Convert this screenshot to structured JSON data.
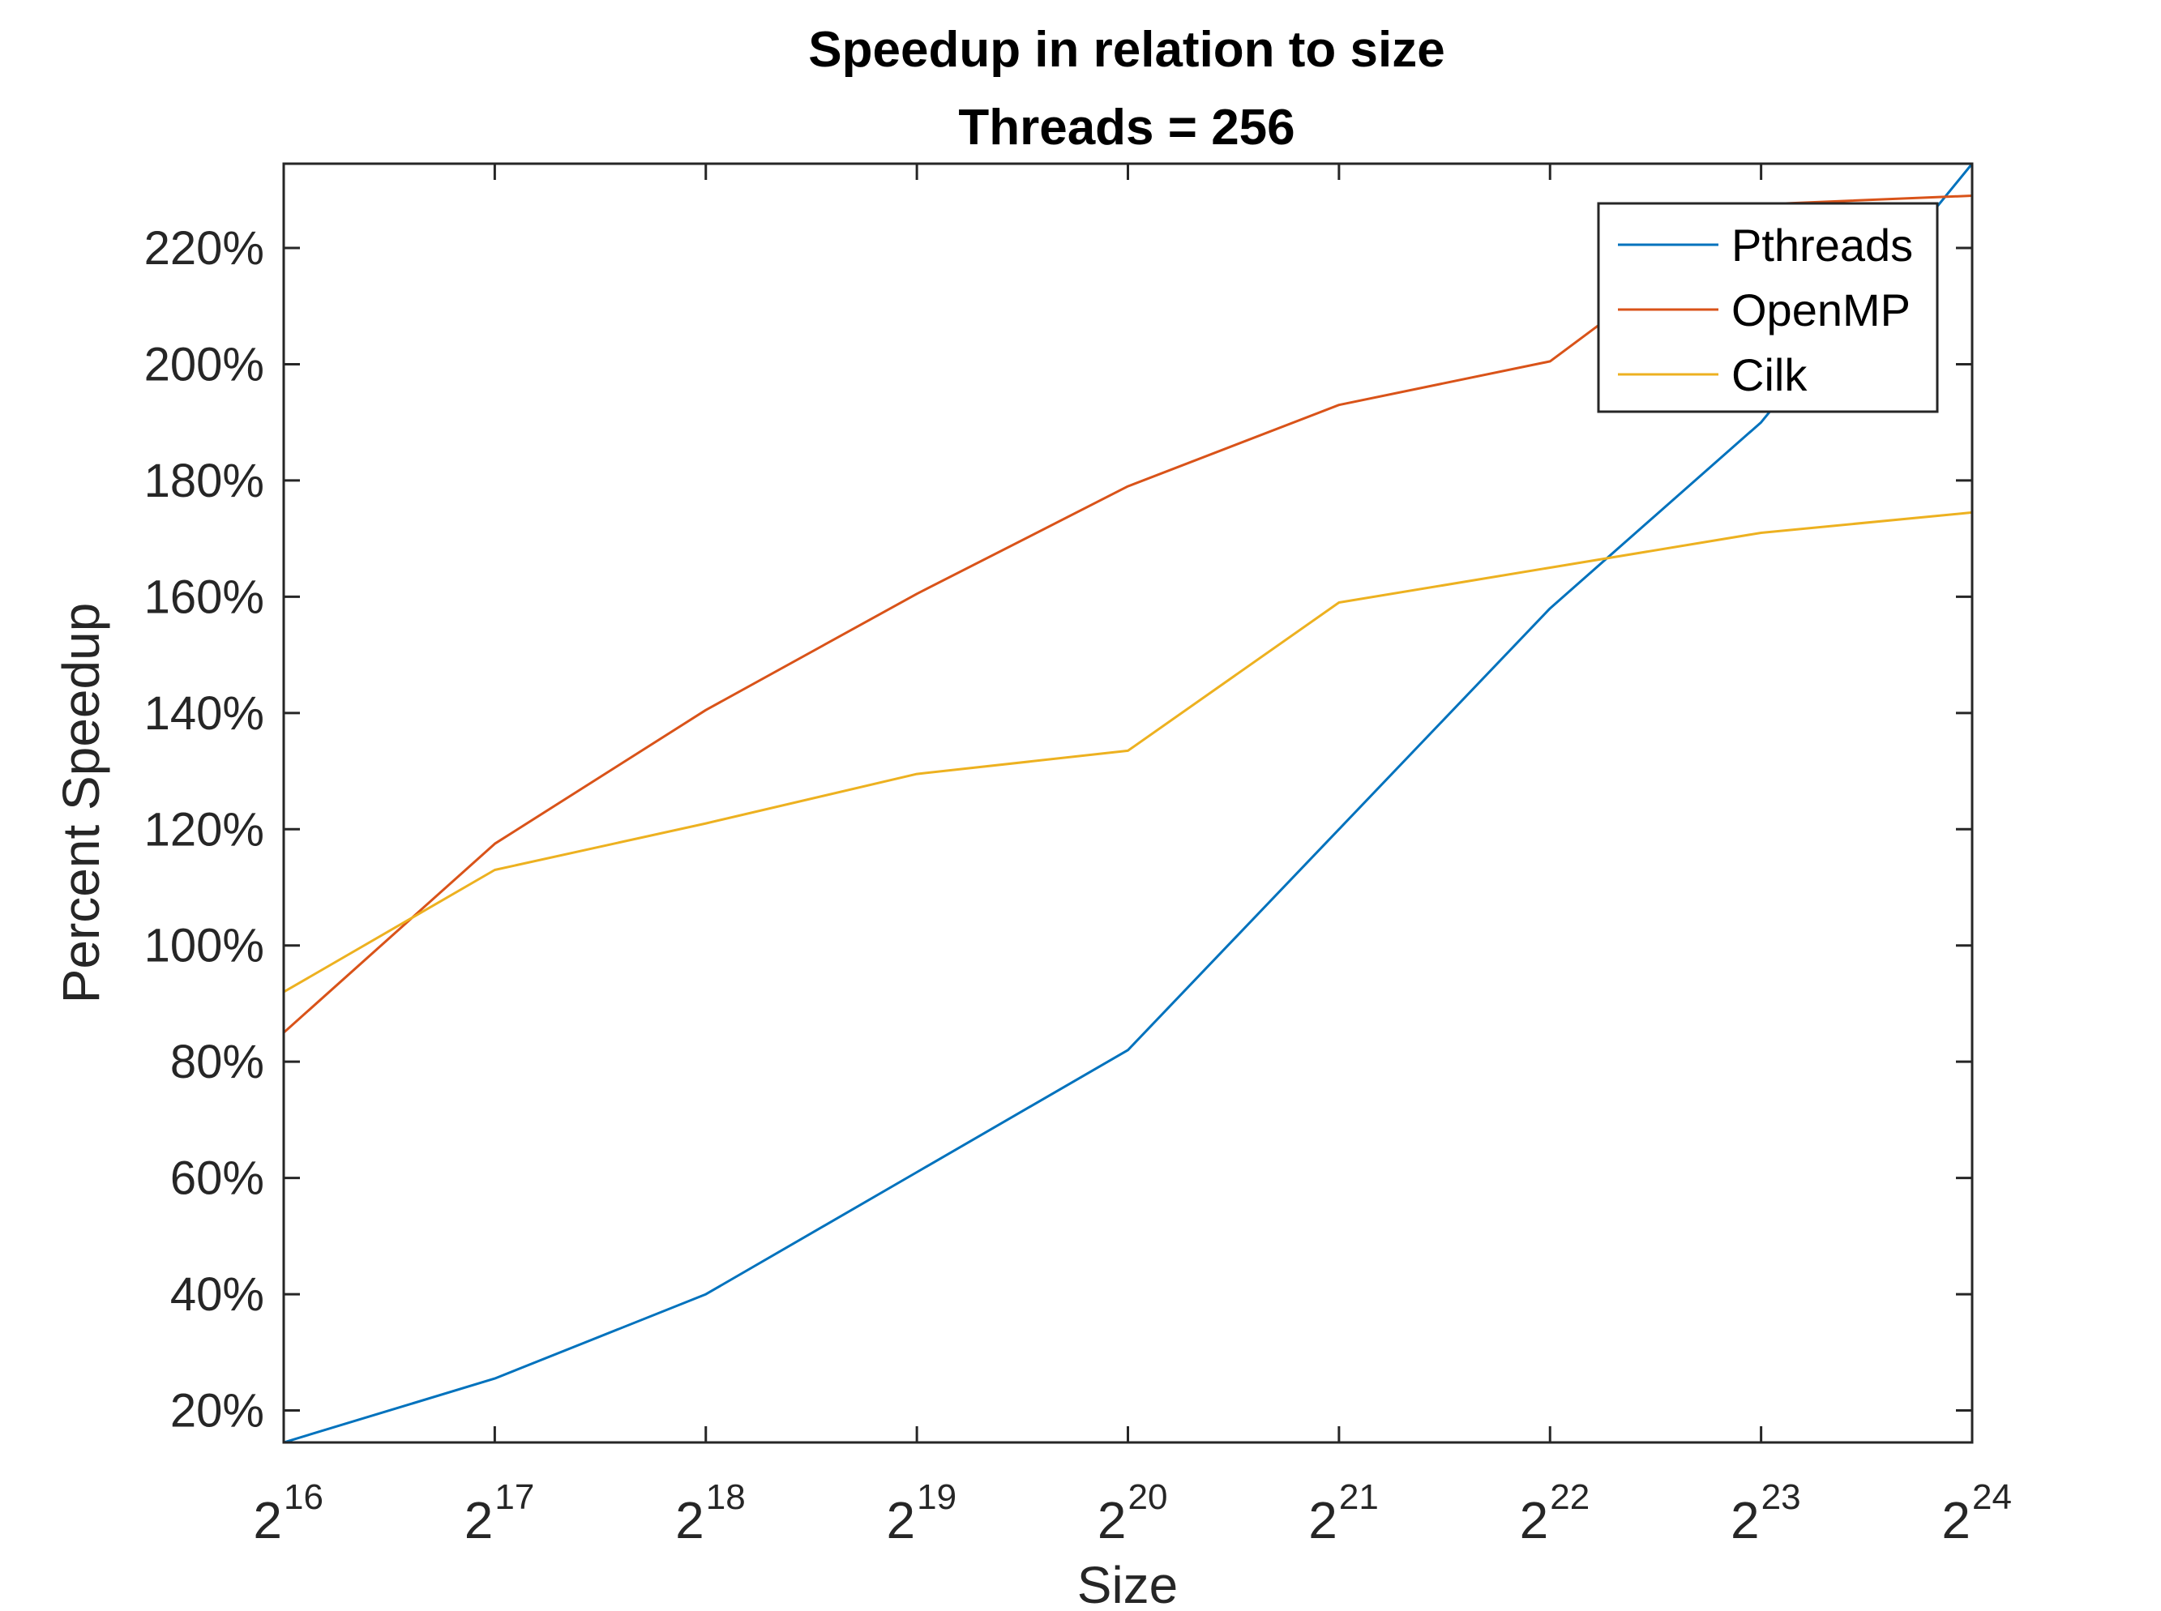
{
  "chart_data": {
    "type": "line",
    "title": [
      "Speedup in relation to size",
      "Threads = 256"
    ],
    "xlabel": "Size",
    "ylabel": "Percent Speedup",
    "x_tick_base": "2",
    "x": [
      16,
      17,
      18,
      19,
      20,
      21,
      22,
      23,
      24
    ],
    "x_ticks": [
      "16",
      "17",
      "18",
      "19",
      "20",
      "21",
      "22",
      "23",
      "24"
    ],
    "xlim": [
      16,
      24
    ],
    "ylim": [
      14.5,
      234.5
    ],
    "y_ticks": [
      20,
      40,
      60,
      80,
      100,
      120,
      140,
      160,
      180,
      200,
      220
    ],
    "y_tick_labels": [
      "20%",
      "40%",
      "60%",
      "80%",
      "100%",
      "120%",
      "140%",
      "160%",
      "180%",
      "200%",
      "220%"
    ],
    "grid": false,
    "legend_position": "top-right",
    "series": [
      {
        "name": "Pthreads",
        "color": "#0072BD",
        "values": [
          14.5,
          25.5,
          40,
          61,
          82,
          120,
          158,
          190,
          234.5
        ]
      },
      {
        "name": "OpenMP",
        "color": "#D95319",
        "values": [
          85,
          117.5,
          140.5,
          160.5,
          179,
          193,
          200.5,
          227.5,
          229
        ]
      },
      {
        "name": "Cilk",
        "color": "#EDB120",
        "values": [
          92,
          113,
          121,
          129.5,
          133.5,
          159,
          165,
          171,
          174.5
        ]
      }
    ]
  }
}
